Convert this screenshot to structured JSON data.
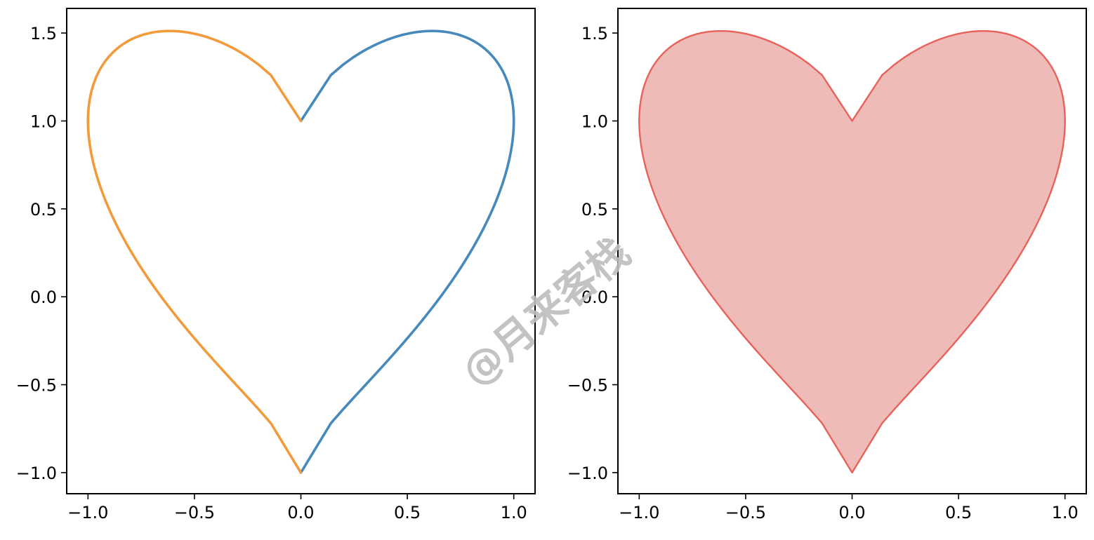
{
  "chart_data": [
    {
      "type": "line",
      "title": "",
      "xlabel": "",
      "ylabel": "",
      "xlim": [
        -1.1,
        1.1
      ],
      "ylim": [
        -1.12,
        1.64
      ],
      "x_ticks": [
        -1.0,
        -0.5,
        0.0,
        0.5,
        1.0
      ],
      "x_tick_labels": [
        "−1.0",
        "−0.5",
        "0.0",
        "0.5",
        "1.0"
      ],
      "y_ticks": [
        -1.0,
        -0.5,
        0.0,
        0.5,
        1.0,
        1.5
      ],
      "y_tick_labels": [
        "−1.0",
        "−0.5",
        "0.0",
        "0.5",
        "1.0",
        "1.5"
      ],
      "grid": false,
      "legend": "none",
      "curve": "heart: x = ±sqrt(1 - s^2), y = s + |x|^(2/3), s from -1 to 1",
      "series": [
        {
          "side": "right",
          "color": "#4589bd",
          "x": [
            0.0,
            0.436,
            0.6,
            0.714,
            0.8,
            0.866,
            0.917,
            0.954,
            0.98,
            0.995,
            1.0,
            0.995,
            0.98,
            0.954,
            0.917,
            0.866,
            0.8,
            0.714,
            0.6,
            0.436,
            0.0
          ],
          "y": [
            -1.0,
            -0.325,
            0.011,
            0.27,
            0.462,
            0.608,
            0.717,
            0.8,
            0.866,
            0.925,
            1.0,
            1.097,
            1.187,
            1.269,
            1.344,
            1.408,
            1.462,
            1.499,
            1.512,
            1.475,
            1.0
          ]
        },
        {
          "side": "left",
          "color": "#f39a3b",
          "x": [
            0.0,
            -0.436,
            -0.6,
            -0.714,
            -0.8,
            -0.866,
            -0.917,
            -0.954,
            -0.98,
            -0.995,
            -1.0,
            -0.995,
            -0.98,
            -0.954,
            -0.917,
            -0.866,
            -0.8,
            -0.714,
            -0.6,
            -0.436,
            0.0
          ],
          "y": [
            -1.0,
            -0.325,
            0.011,
            0.27,
            0.462,
            0.608,
            0.717,
            0.8,
            0.866,
            0.925,
            1.0,
            1.097,
            1.187,
            1.269,
            1.344,
            1.408,
            1.462,
            1.499,
            1.512,
            1.475,
            1.0
          ]
        }
      ]
    },
    {
      "type": "area",
      "title": "",
      "xlabel": "",
      "ylabel": "",
      "xlim": [
        -1.1,
        1.1
      ],
      "ylim": [
        -1.12,
        1.64
      ],
      "x_ticks": [
        -1.0,
        -0.5,
        0.0,
        0.5,
        1.0
      ],
      "x_tick_labels": [
        "−1.0",
        "−0.5",
        "0.0",
        "0.5",
        "1.0"
      ],
      "y_ticks": [
        -1.0,
        -0.5,
        0.0,
        0.5,
        1.0,
        1.5
      ],
      "y_tick_labels": [
        "−1.0",
        "−0.5",
        "0.0",
        "0.5",
        "1.0",
        "1.5"
      ],
      "grid": false,
      "legend": "none",
      "curve": "filled heart, same curve as left panel",
      "edge_color": "#e8625a",
      "fill_color": "#efbbb8"
    }
  ],
  "watermark": {
    "text": "@月来客栈",
    "color": "#bdbdbd"
  }
}
